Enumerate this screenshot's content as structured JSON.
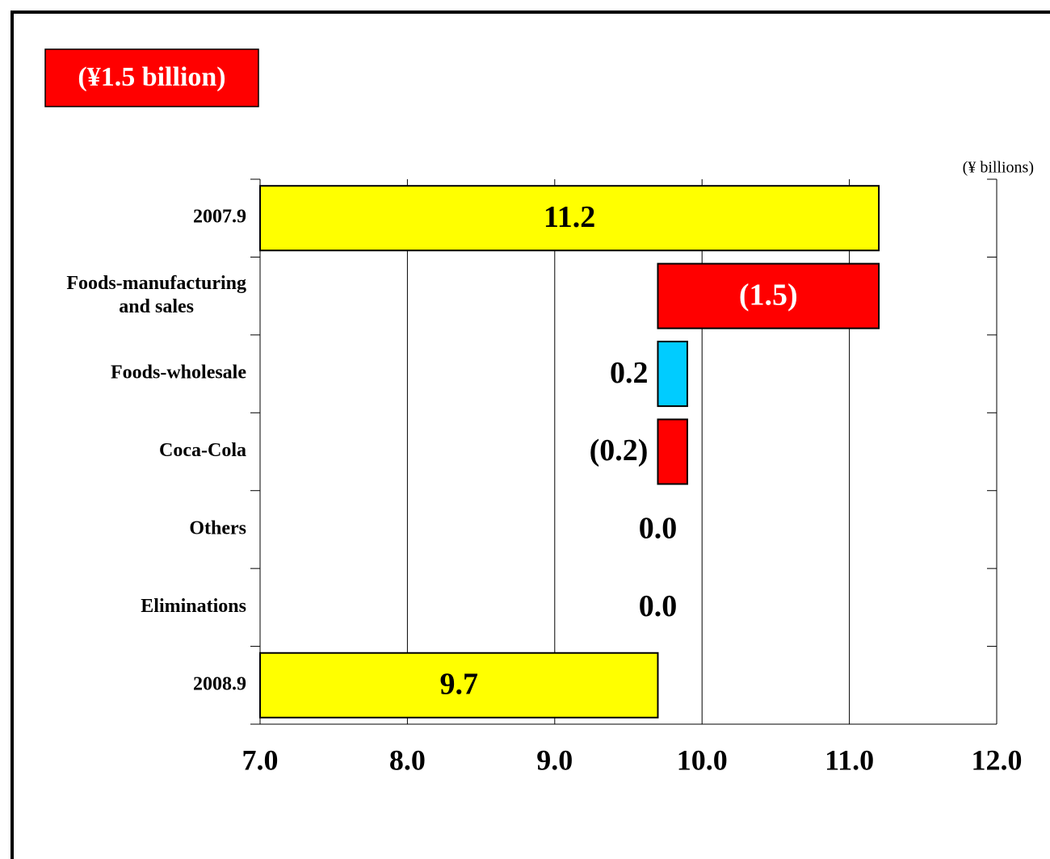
{
  "chart_data": {
    "type": "waterfall",
    "annotation": "(¥1.5 billion)",
    "unit_label": "(¥ billions)",
    "categories": [
      "2007.9",
      "Foods-manufacturing\nand sales",
      "Foods-wholesale",
      "Coca-Cola",
      "Others",
      "Eliminations",
      "2008.9"
    ],
    "values": [
      11.2,
      -1.5,
      0.2,
      -0.2,
      0.0,
      0.0,
      9.7
    ],
    "value_labels": [
      "11.2",
      "(1.5)",
      "0.2",
      "(0.2)",
      "0.0",
      "0.0",
      "9.7"
    ],
    "colors": [
      "#ffff00",
      "#ff0000",
      "#00ccff",
      "#ff0000",
      "#ff0000",
      "#ff0000",
      "#ffff00"
    ],
    "xlim": [
      7,
      12
    ],
    "xticks": [
      {
        "value": 7,
        "label": "7.0"
      },
      {
        "value": 8,
        "label": "8.0"
      },
      {
        "value": 9,
        "label": "9.0"
      },
      {
        "value": 10,
        "label": "10.0"
      },
      {
        "value": 11,
        "label": "11.0"
      },
      {
        "value": 12,
        "label": "12.0"
      }
    ],
    "grid": true
  }
}
